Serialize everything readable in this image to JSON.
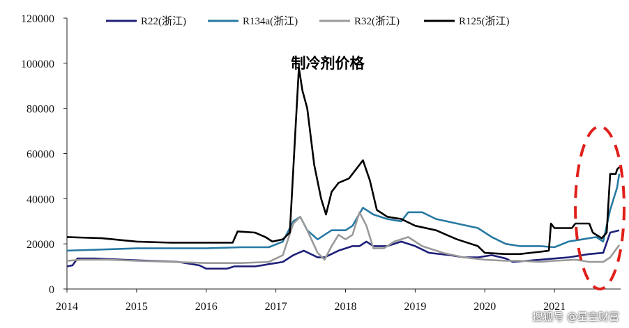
{
  "chart_data": {
    "type": "line",
    "title": "制冷剂价格",
    "xlabel": "",
    "ylabel": "",
    "ylim": [
      0,
      120000
    ],
    "y_ticks": [
      0,
      20000,
      40000,
      60000,
      80000,
      100000,
      120000
    ],
    "xlim": [
      2014,
      2021.95
    ],
    "x_ticks": [
      2014,
      2015,
      2016,
      2017,
      2018,
      2019,
      2020,
      2021
    ],
    "grid": false,
    "legend_position": "top",
    "series": [
      {
        "name": "R22(浙江)",
        "color": "#1f1f7a",
        "points": [
          [
            2014.0,
            10000
          ],
          [
            2014.08,
            10500
          ],
          [
            2014.15,
            13500
          ],
          [
            2014.4,
            13500
          ],
          [
            2014.8,
            13000
          ],
          [
            2015.2,
            12500
          ],
          [
            2015.6,
            12000
          ],
          [
            2015.9,
            10500
          ],
          [
            2016.0,
            9000
          ],
          [
            2016.3,
            9000
          ],
          [
            2016.4,
            10000
          ],
          [
            2016.7,
            10000
          ],
          [
            2016.9,
            11000
          ],
          [
            2017.1,
            12000
          ],
          [
            2017.25,
            15000
          ],
          [
            2017.4,
            17000
          ],
          [
            2017.6,
            14000
          ],
          [
            2017.7,
            14000
          ],
          [
            2017.9,
            17000
          ],
          [
            2018.1,
            19000
          ],
          [
            2018.2,
            19000
          ],
          [
            2018.3,
            21000
          ],
          [
            2018.4,
            19000
          ],
          [
            2018.6,
            19000
          ],
          [
            2018.8,
            21000
          ],
          [
            2019.0,
            19000
          ],
          [
            2019.2,
            16000
          ],
          [
            2019.5,
            15000
          ],
          [
            2019.7,
            14000
          ],
          [
            2019.9,
            14000
          ],
          [
            2020.1,
            15000
          ],
          [
            2020.3,
            13500
          ],
          [
            2020.4,
            12000
          ],
          [
            2020.6,
            12500
          ],
          [
            2020.8,
            13000
          ],
          [
            2021.0,
            13500
          ],
          [
            2021.2,
            14000
          ],
          [
            2021.5,
            15500
          ],
          [
            2021.7,
            16000
          ],
          [
            2021.8,
            25000
          ],
          [
            2021.93,
            26000
          ]
        ]
      },
      {
        "name": "R134a(浙江)",
        "color": "#2779a3",
        "points": [
          [
            2014.0,
            17000
          ],
          [
            2014.5,
            17500
          ],
          [
            2015.0,
            18000
          ],
          [
            2015.5,
            18000
          ],
          [
            2016.0,
            18000
          ],
          [
            2016.5,
            18500
          ],
          [
            2016.9,
            18500
          ],
          [
            2017.1,
            21000
          ],
          [
            2017.25,
            30000
          ],
          [
            2017.35,
            32000
          ],
          [
            2017.45,
            26000
          ],
          [
            2017.6,
            22000
          ],
          [
            2017.8,
            26000
          ],
          [
            2018.0,
            26000
          ],
          [
            2018.1,
            28000
          ],
          [
            2018.25,
            36000
          ],
          [
            2018.4,
            33000
          ],
          [
            2018.6,
            31000
          ],
          [
            2018.8,
            30000
          ],
          [
            2018.9,
            34000
          ],
          [
            2019.1,
            34000
          ],
          [
            2019.3,
            31000
          ],
          [
            2019.6,
            29000
          ],
          [
            2019.9,
            27000
          ],
          [
            2020.1,
            23000
          ],
          [
            2020.3,
            20000
          ],
          [
            2020.5,
            19000
          ],
          [
            2020.8,
            19000
          ],
          [
            2021.0,
            18500
          ],
          [
            2021.2,
            21000
          ],
          [
            2021.4,
            22000
          ],
          [
            2021.6,
            23000
          ],
          [
            2021.7,
            21000
          ],
          [
            2021.8,
            35000
          ],
          [
            2021.9,
            45000
          ],
          [
            2021.93,
            51000
          ]
        ]
      },
      {
        "name": "R32(浙江)",
        "color": "#9a9a9a",
        "points": [
          [
            2014.0,
            12500
          ],
          [
            2014.2,
            13000
          ],
          [
            2014.6,
            13000
          ],
          [
            2015.0,
            12500
          ],
          [
            2015.5,
            12000
          ],
          [
            2016.0,
            11500
          ],
          [
            2016.5,
            11500
          ],
          [
            2016.9,
            12000
          ],
          [
            2017.1,
            15000
          ],
          [
            2017.25,
            29000
          ],
          [
            2017.35,
            32000
          ],
          [
            2017.45,
            26000
          ],
          [
            2017.6,
            16000
          ],
          [
            2017.7,
            13000
          ],
          [
            2017.8,
            19000
          ],
          [
            2017.9,
            24000
          ],
          [
            2018.0,
            22000
          ],
          [
            2018.1,
            24000
          ],
          [
            2018.2,
            34000
          ],
          [
            2018.3,
            28000
          ],
          [
            2018.4,
            18000
          ],
          [
            2018.55,
            18000
          ],
          [
            2018.7,
            21000
          ],
          [
            2018.9,
            23000
          ],
          [
            2019.1,
            19000
          ],
          [
            2019.4,
            16000
          ],
          [
            2019.7,
            14000
          ],
          [
            2020.0,
            13000
          ],
          [
            2020.3,
            12500
          ],
          [
            2020.5,
            12500
          ],
          [
            2020.8,
            12000
          ],
          [
            2021.0,
            12500
          ],
          [
            2021.3,
            13000
          ],
          [
            2021.5,
            12000
          ],
          [
            2021.7,
            12000
          ],
          [
            2021.8,
            14000
          ],
          [
            2021.93,
            19500
          ]
        ]
      },
      {
        "name": "R125(浙江)",
        "color": "#000000",
        "points": [
          [
            2014.0,
            23000
          ],
          [
            2014.5,
            22500
          ],
          [
            2015.0,
            21000
          ],
          [
            2015.5,
            20500
          ],
          [
            2016.0,
            20500
          ],
          [
            2016.38,
            20500
          ],
          [
            2016.45,
            25500
          ],
          [
            2016.7,
            25000
          ],
          [
            2016.85,
            23000
          ],
          [
            2016.95,
            21000
          ],
          [
            2017.1,
            22000
          ],
          [
            2017.2,
            25000
          ],
          [
            2017.28,
            70000
          ],
          [
            2017.33,
            98000
          ],
          [
            2017.38,
            88000
          ],
          [
            2017.45,
            80000
          ],
          [
            2017.55,
            55000
          ],
          [
            2017.65,
            40000
          ],
          [
            2017.72,
            33000
          ],
          [
            2017.8,
            43000
          ],
          [
            2017.9,
            47000
          ],
          [
            2018.05,
            49000
          ],
          [
            2018.15,
            53000
          ],
          [
            2018.25,
            57000
          ],
          [
            2018.35,
            48000
          ],
          [
            2018.45,
            35000
          ],
          [
            2018.6,
            32000
          ],
          [
            2018.8,
            31000
          ],
          [
            2019.0,
            28000
          ],
          [
            2019.3,
            26000
          ],
          [
            2019.6,
            22000
          ],
          [
            2019.9,
            19000
          ],
          [
            2020.0,
            16000
          ],
          [
            2020.3,
            15500
          ],
          [
            2020.5,
            15500
          ],
          [
            2020.8,
            16500
          ],
          [
            2020.92,
            17000
          ],
          [
            2020.95,
            29000
          ],
          [
            2021.0,
            27000
          ],
          [
            2021.25,
            27000
          ],
          [
            2021.3,
            29000
          ],
          [
            2021.4,
            29000
          ],
          [
            2021.5,
            29000
          ],
          [
            2021.55,
            25000
          ],
          [
            2021.68,
            22500
          ],
          [
            2021.75,
            25000
          ],
          [
            2021.8,
            51000
          ],
          [
            2021.88,
            51000
          ],
          [
            2021.9,
            53000
          ],
          [
            2021.93,
            54000
          ]
        ]
      }
    ],
    "highlight": {
      "shape": "dashed-ellipse",
      "color": "#e0201b",
      "x_range": [
        2021.3,
        2022.0
      ],
      "y_range": [
        0,
        72000
      ]
    }
  },
  "watermark": "搜狐号 @星空财富"
}
